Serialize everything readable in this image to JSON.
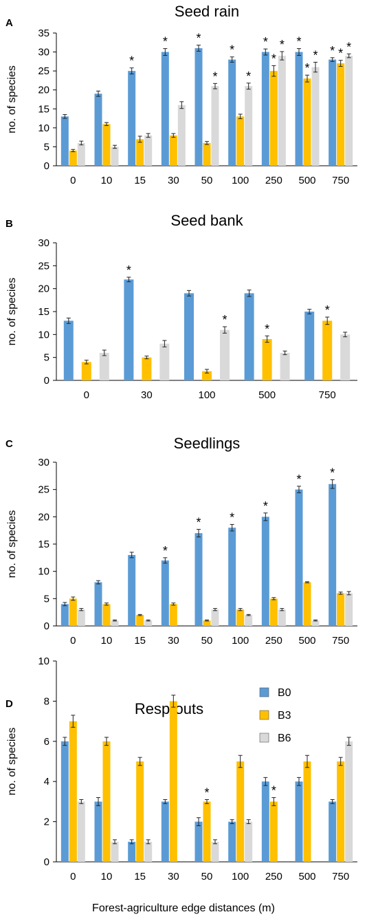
{
  "xlabel": "Forest-agriculture edge distances (m)",
  "legend": [
    {
      "name": "B0",
      "color": "#5b9bd5"
    },
    {
      "name": "B3",
      "color": "#ffc000"
    },
    {
      "name": "B6",
      "color": "#d9d9d9"
    }
  ],
  "chart_data": [
    {
      "panel": "A",
      "type": "bar",
      "title": "Seed rain",
      "ylabel": "no. of species",
      "ylim": [
        0,
        35
      ],
      "yticks": [
        0,
        5,
        10,
        15,
        20,
        25,
        30,
        35
      ],
      "categories": [
        "0",
        "10",
        "15",
        "30",
        "50",
        "100",
        "250",
        "500",
        "750"
      ],
      "series": [
        {
          "name": "B0",
          "values": [
            13,
            19,
            25,
            30,
            31,
            28,
            30,
            30,
            28
          ],
          "errors": [
            0.5,
            0.7,
            0.8,
            0.9,
            0.8,
            0.7,
            0.8,
            0.9,
            0.5
          ],
          "sig": [
            false,
            false,
            true,
            true,
            true,
            true,
            true,
            true,
            true
          ]
        },
        {
          "name": "B3",
          "values": [
            4,
            11,
            7,
            8,
            6,
            13,
            25,
            23,
            27
          ],
          "errors": [
            0.3,
            0.4,
            0.8,
            0.5,
            0.4,
            0.6,
            1.4,
            0.9,
            0.8
          ],
          "sig": [
            false,
            false,
            false,
            false,
            false,
            false,
            true,
            true,
            true
          ]
        },
        {
          "name": "B6",
          "values": [
            6,
            5,
            8,
            16,
            21,
            21,
            29,
            26,
            29
          ],
          "errors": [
            0.5,
            0.4,
            0.5,
            0.9,
            0.7,
            0.8,
            1.1,
            1.3,
            0.5
          ],
          "sig": [
            false,
            false,
            false,
            false,
            true,
            true,
            true,
            true,
            true
          ]
        }
      ]
    },
    {
      "panel": "B",
      "type": "bar",
      "title": "Seed bank",
      "ylabel": "no. of species",
      "ylim": [
        0,
        30
      ],
      "yticks": [
        0,
        5,
        10,
        15,
        20,
        25,
        30
      ],
      "categories": [
        "0",
        "30",
        "100",
        "500",
        "750"
      ],
      "series": [
        {
          "name": "B0",
          "values": [
            13,
            22,
            19,
            19,
            15
          ],
          "errors": [
            0.6,
            0.5,
            0.6,
            0.7,
            0.5
          ],
          "sig": [
            false,
            true,
            false,
            false,
            false
          ]
        },
        {
          "name": "B3",
          "values": [
            4,
            5,
            2,
            9,
            13
          ],
          "errors": [
            0.4,
            0.3,
            0.4,
            0.7,
            0.8
          ],
          "sig": [
            false,
            false,
            false,
            true,
            true
          ]
        },
        {
          "name": "B6",
          "values": [
            6,
            8,
            11,
            6,
            10
          ],
          "errors": [
            0.6,
            0.7,
            0.7,
            0.4,
            0.5
          ],
          "sig": [
            false,
            false,
            true,
            false,
            false
          ]
        }
      ]
    },
    {
      "panel": "C",
      "type": "bar",
      "title": "Seedlings",
      "ylabel": "no. of species",
      "ylim": [
        0,
        30
      ],
      "yticks": [
        0,
        5,
        10,
        15,
        20,
        25,
        30
      ],
      "categories": [
        "0",
        "10",
        "15",
        "30",
        "50",
        "100",
        "250",
        "500",
        "750"
      ],
      "series": [
        {
          "name": "B0",
          "values": [
            4,
            8,
            13,
            12,
            17,
            18,
            20,
            25,
            26
          ],
          "errors": [
            0.3,
            0.3,
            0.5,
            0.5,
            0.7,
            0.6,
            0.7,
            0.6,
            0.8
          ],
          "sig": [
            false,
            false,
            false,
            true,
            true,
            true,
            true,
            true,
            true
          ]
        },
        {
          "name": "B3",
          "values": [
            5,
            4,
            2,
            4,
            1,
            3,
            5,
            8,
            6
          ],
          "errors": [
            0.3,
            0.2,
            0.1,
            0.2,
            0.1,
            0.2,
            0.2,
            0.1,
            0.2
          ],
          "sig": [
            false,
            false,
            false,
            false,
            false,
            false,
            false,
            false,
            false
          ]
        },
        {
          "name": "B6",
          "values": [
            3,
            1,
            1,
            0,
            3,
            2,
            3,
            1,
            6
          ],
          "errors": [
            0.2,
            0.1,
            0.1,
            0,
            0.2,
            0.1,
            0.2,
            0.1,
            0.3
          ],
          "sig": [
            false,
            false,
            false,
            false,
            false,
            false,
            false,
            false,
            false
          ]
        }
      ]
    },
    {
      "panel": "D",
      "type": "bar",
      "title": "Resprouts",
      "ylabel": "no. of species",
      "ylim": [
        0,
        10
      ],
      "yticks": [
        0,
        2,
        4,
        6,
        8,
        10
      ],
      "categories": [
        "0",
        "10",
        "15",
        "30",
        "50",
        "100",
        "250",
        "500",
        "750"
      ],
      "series": [
        {
          "name": "B0",
          "values": [
            6,
            3,
            1,
            3,
            2,
            2,
            4,
            4,
            3
          ],
          "errors": [
            0.2,
            0.2,
            0.1,
            0.1,
            0.2,
            0.1,
            0.2,
            0.2,
            0.1
          ],
          "sig": [
            false,
            false,
            false,
            false,
            false,
            false,
            false,
            false,
            false
          ]
        },
        {
          "name": "B3",
          "values": [
            7,
            6,
            5,
            8,
            3,
            5,
            3,
            5,
            5
          ],
          "errors": [
            0.3,
            0.2,
            0.2,
            0.3,
            0.1,
            0.3,
            0.2,
            0.3,
            0.2
          ],
          "sig": [
            false,
            false,
            false,
            false,
            true,
            false,
            true,
            false,
            false
          ]
        },
        {
          "name": "B6",
          "values": [
            3,
            1,
            1,
            0,
            1,
            2,
            0,
            0,
            6
          ],
          "errors": [
            0.1,
            0.1,
            0.1,
            0,
            0.1,
            0.1,
            0,
            0,
            0.2
          ],
          "sig": [
            false,
            false,
            false,
            false,
            false,
            false,
            false,
            false,
            false
          ]
        }
      ]
    }
  ]
}
